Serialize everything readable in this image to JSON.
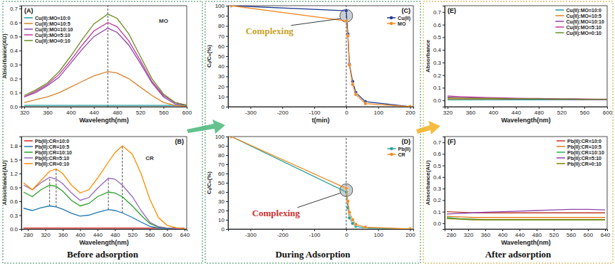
{
  "captions": [
    "Before adsorption",
    "During Adsorption",
    "After adsorption"
  ],
  "chart_data": [
    {
      "type": "line",
      "title": "(A)",
      "x_label": "Wavelength(nm)",
      "y_label": "Absorbance(AU)",
      "x": [
        320,
        340,
        360,
        380,
        400,
        420,
        440,
        464,
        480,
        500,
        520,
        540,
        560,
        580,
        600
      ],
      "xlim": [
        315,
        600
      ],
      "xticks": [
        320,
        360,
        400,
        440,
        480,
        520,
        560,
        600
      ],
      "ylim": [
        0,
        0.72
      ],
      "yticks": [
        {
          "value": 0,
          "label": "0.0"
        },
        0.1,
        0.2,
        0.3,
        0.4,
        0.5,
        0.6,
        0.7
      ],
      "legend": "upper left",
      "reference_lines": [
        {
          "x": 464
        }
      ],
      "annotations": [
        {
          "text": "MO",
          "x": 560,
          "y": 0.6,
          "color": "#333333"
        }
      ],
      "series": [
        {
          "name": "Cu(II):MO=10:0",
          "color": "#1f9e9e",
          "values": [
            0.01,
            0.01,
            0.01,
            0.01,
            0.01,
            0.01,
            0.01,
            0.01,
            0.01,
            0.01,
            0.01,
            0.01,
            0.01,
            0.01,
            0.01
          ]
        },
        {
          "name": "Cu(II):MO=10:5",
          "color": "#d9822b",
          "values": [
            0.03,
            0.05,
            0.07,
            0.1,
            0.14,
            0.18,
            0.22,
            0.25,
            0.24,
            0.2,
            0.14,
            0.08,
            0.03,
            0.01,
            0.0
          ]
        },
        {
          "name": "Cu(II):MO=10:10",
          "color": "#8e44ad",
          "values": [
            0.07,
            0.1,
            0.15,
            0.21,
            0.31,
            0.41,
            0.5,
            0.56,
            0.53,
            0.44,
            0.31,
            0.17,
            0.07,
            0.02,
            0.01
          ]
        },
        {
          "name": "Cu(II):MO=5:10",
          "color": "#c0399c",
          "values": [
            0.07,
            0.11,
            0.16,
            0.23,
            0.33,
            0.44,
            0.54,
            0.6,
            0.57,
            0.47,
            0.33,
            0.18,
            0.08,
            0.03,
            0.01
          ]
        },
        {
          "name": "Cu(II):MO=0:10",
          "color": "#6b8e23",
          "values": [
            0.08,
            0.12,
            0.17,
            0.25,
            0.36,
            0.48,
            0.59,
            0.66,
            0.63,
            0.52,
            0.36,
            0.2,
            0.09,
            0.03,
            0.01
          ]
        }
      ]
    },
    {
      "type": "line",
      "title": "(B)",
      "x_label": "Wavelength(nm)",
      "y_label": "Absorbance(AU)",
      "x": [
        270,
        290,
        310,
        330,
        345,
        360,
        380,
        400,
        420,
        440,
        465,
        480,
        497,
        520,
        540,
        560,
        580,
        600,
        620,
        640
      ],
      "xlim": [
        265,
        645
      ],
      "xticks": [
        280,
        320,
        360,
        400,
        440,
        480,
        520,
        560,
        600,
        640
      ],
      "ylim": [
        0,
        2.0
      ],
      "yticks": [
        {
          "value": 0,
          "label": "0.0"
        },
        0.3,
        0.6,
        0.9,
        1.2,
        1.5,
        1.8
      ],
      "legend": "upper left",
      "reference_lines": [
        {
          "x": 330,
          "y": [
            0.5,
            1.12
          ]
        },
        {
          "x": 345,
          "y": [
            0.48,
            1.3
          ]
        },
        {
          "x": 465,
          "y": [
            0.42,
            1.1
          ]
        },
        {
          "x": 497,
          "y": [
            0.35,
            1.8
          ]
        }
      ],
      "annotations": [
        {
          "text": "CR",
          "x": 560,
          "y": 1.5,
          "color": "#333333"
        }
      ],
      "series": [
        {
          "name": "Pb(II):CR=10:0",
          "color": "#d62728",
          "values": [
            0.02,
            0.02,
            0.02,
            0.02,
            0.02,
            0.02,
            0.02,
            0.02,
            0.02,
            0.02,
            0.02,
            0.02,
            0.02,
            0.02,
            0.02,
            0.02,
            0.02,
            0.02,
            0.02,
            0.02
          ]
        },
        {
          "name": "Pb(II):CR=10:5",
          "color": "#1f77b4",
          "values": [
            0.45,
            0.4,
            0.46,
            0.5,
            0.48,
            0.43,
            0.34,
            0.28,
            0.3,
            0.36,
            0.42,
            0.4,
            0.35,
            0.25,
            0.15,
            0.06,
            0.02,
            0.01,
            0.0,
            0.0
          ]
        },
        {
          "name": "Pb(II):CR=10:10",
          "color": "#2ca02c",
          "values": [
            0.8,
            0.7,
            0.85,
            0.95,
            0.92,
            0.82,
            0.62,
            0.5,
            0.55,
            0.7,
            0.8,
            0.78,
            0.7,
            0.5,
            0.3,
            0.12,
            0.04,
            0.02,
            0.01,
            0.01
          ]
        },
        {
          "name": "Pb(II):CR=5:10",
          "color": "#9467bd",
          "values": [
            0.95,
            0.85,
            1.0,
            1.12,
            1.08,
            0.98,
            0.78,
            0.62,
            0.68,
            0.88,
            1.1,
            1.08,
            0.95,
            0.7,
            0.4,
            0.15,
            0.05,
            0.02,
            0.01,
            0.01
          ]
        },
        {
          "name": "Pb(II):CR=0:10",
          "color": "#ff8c00",
          "values": [
            1.0,
            0.85,
            1.05,
            1.25,
            1.3,
            1.2,
            0.95,
            0.78,
            0.85,
            1.1,
            1.45,
            1.65,
            1.8,
            1.62,
            1.2,
            0.65,
            0.25,
            0.08,
            0.03,
            0.01
          ]
        }
      ]
    },
    {
      "type": "line",
      "title": "(C)",
      "x_label": "t(min)",
      "y_label": "Cₜ/C₀(%)",
      "x": [
        -360,
        0,
        5,
        10,
        20,
        30,
        60,
        200
      ],
      "xlim": [
        -370,
        210
      ],
      "xticks": [
        -300,
        -200,
        -100,
        0,
        100,
        200
      ],
      "ylim": [
        0,
        100
      ],
      "yticks": [
        0,
        10,
        20,
        30,
        40,
        50,
        60,
        70,
        80,
        90,
        100
      ],
      "legend": "upper right",
      "marker": "circle",
      "reference_lines": [
        {
          "x": 0
        }
      ],
      "annotations": [
        {
          "text": "Complexing",
          "x": -240,
          "y": 72,
          "target": [
            0,
            90
          ],
          "color": "#c9a227"
        }
      ],
      "series": [
        {
          "name": "Cu(II)",
          "color": "#1f3a93",
          "values": [
            100,
            95,
            72,
            42,
            25,
            14,
            5,
            0
          ]
        },
        {
          "name": "MO",
          "color": "#f08a24",
          "values": [
            100,
            85,
            70,
            41,
            22,
            12,
            3,
            0
          ]
        }
      ]
    },
    {
      "type": "line",
      "title": "(D)",
      "y_label": "Cₜ/C₀(%)",
      "x": [
        -360,
        0,
        5,
        10,
        20,
        30,
        60,
        200
      ],
      "xlim": [
        -370,
        210
      ],
      "xticks": [
        -300,
        -200,
        -100,
        0,
        100,
        200
      ],
      "ylim": [
        0,
        100
      ],
      "yticks": [
        0,
        10,
        20,
        30,
        40,
        50,
        60,
        70,
        80,
        90,
        100
      ],
      "legend": "upper right",
      "marker": "circle",
      "reference_lines": [
        {
          "x": 0
        }
      ],
      "annotations": [
        {
          "text": "Complexing",
          "x": -220,
          "y": 14,
          "target": [
            0,
            42
          ],
          "color": "#d03030"
        }
      ],
      "series": [
        {
          "name": "Pb(II)",
          "color": "#2aa198",
          "values": [
            100,
            40,
            23,
            12,
            6,
            3,
            1,
            0
          ]
        },
        {
          "name": "CR",
          "color": "#f08a24",
          "values": [
            100,
            44,
            30,
            18,
            10,
            5,
            2,
            0
          ]
        }
      ]
    },
    {
      "type": "line",
      "title": "(E)",
      "x_label": "Wavelength(nm)",
      "y_label": "Absorbance",
      "x": [
        320,
        340,
        360,
        380,
        400,
        420,
        440,
        464,
        480,
        500,
        520,
        540,
        560,
        580,
        600
      ],
      "xlim": [
        315,
        600
      ],
      "xticks": [
        320,
        360,
        400,
        440,
        480,
        520,
        560,
        600
      ],
      "ylim": [
        -0.05,
        0.75
      ],
      "yticks": [
        {
          "value": 0,
          "label": "0.0"
        },
        0.1,
        0.2,
        0.3,
        0.4,
        0.5,
        0.6,
        0.7
      ],
      "legend": "upper right",
      "series": [
        {
          "name": "Cu(II):MO=10:0",
          "color": "#1f9e9e",
          "values": [
            0.005,
            0.005,
            0.005,
            0.005,
            0.005,
            0.005,
            0.005,
            0.005,
            0.005,
            0.005,
            0.005,
            0.005,
            0.005,
            0.005,
            0.005
          ]
        },
        {
          "name": "Cu(II):MO=10:5",
          "color": "#d9822b",
          "values": [
            0.012,
            0.012,
            0.011,
            0.011,
            0.011,
            0.01,
            0.01,
            0.01,
            0.01,
            0.009,
            0.009,
            0.009,
            0.008,
            0.008,
            0.008
          ]
        },
        {
          "name": "Cu(II):MO=10:10",
          "color": "#8e44ad",
          "values": [
            0.025,
            0.022,
            0.02,
            0.018,
            0.016,
            0.014,
            0.012,
            0.011,
            0.01,
            0.009,
            0.008,
            0.007,
            0.006,
            0.006,
            0.005
          ]
        },
        {
          "name": "Cu(II):MO=5:10",
          "color": "#c0399c",
          "values": [
            0.035,
            0.03,
            0.027,
            0.024,
            0.021,
            0.019,
            0.017,
            0.016,
            0.015,
            0.014,
            0.013,
            0.012,
            0.011,
            0.01,
            0.01
          ]
        },
        {
          "name": "Cu(II):MO=0:10",
          "color": "#6b8e23",
          "values": [
            0.02,
            0.018,
            0.017,
            0.016,
            0.015,
            0.014,
            0.013,
            0.012,
            0.012,
            0.011,
            0.01,
            0.01,
            0.009,
            0.009,
            0.008
          ]
        }
      ]
    },
    {
      "type": "line",
      "title": "(F)",
      "x_label": "Wavelength(nm)",
      "y_label": "Absorbance(AU)",
      "x": [
        270,
        300,
        330,
        360,
        400,
        440,
        480,
        520,
        560,
        600,
        640
      ],
      "xlim": [
        265,
        645
      ],
      "xticks": [
        280,
        320,
        360,
        400,
        440,
        480,
        520,
        560,
        600,
        640
      ],
      "ylim": [
        -0.05,
        0.75
      ],
      "yticks": [
        {
          "value": 0,
          "label": "0.0"
        },
        0.1,
        0.2,
        0.3,
        0.4,
        0.5,
        0.6,
        0.7
      ],
      "legend": "upper right",
      "series": [
        {
          "name": "Pb(II):CR=10:0",
          "color": "#c0392b",
          "values": [
            0.1,
            0.095,
            0.09,
            0.09,
            0.09,
            0.09,
            0.09,
            0.09,
            0.09,
            0.09,
            0.09
          ]
        },
        {
          "name": "Pb(II):CR=10:5",
          "color": "#e67e22",
          "values": [
            0.06,
            0.055,
            0.05,
            0.05,
            0.05,
            0.05,
            0.05,
            0.05,
            0.05,
            0.05,
            0.05
          ]
        },
        {
          "name": "Pb(II):CR=10:10",
          "color": "#27ae60",
          "values": [
            0.05,
            0.04,
            0.035,
            0.03,
            0.03,
            0.03,
            0.03,
            0.03,
            0.03,
            0.03,
            0.03
          ]
        },
        {
          "name": "Pb(II):CR=5:10",
          "color": "#8e44ad",
          "values": [
            0.08,
            0.085,
            0.09,
            0.095,
            0.1,
            0.105,
            0.11,
            0.115,
            0.12,
            0.12,
            0.115
          ]
        },
        {
          "name": "Pb(II):CR=0:10",
          "color": "#808000",
          "values": [
            0.04,
            0.035,
            0.03,
            0.03,
            0.03,
            0.03,
            0.03,
            0.03,
            0.03,
            0.03,
            0.03
          ]
        }
      ]
    }
  ]
}
